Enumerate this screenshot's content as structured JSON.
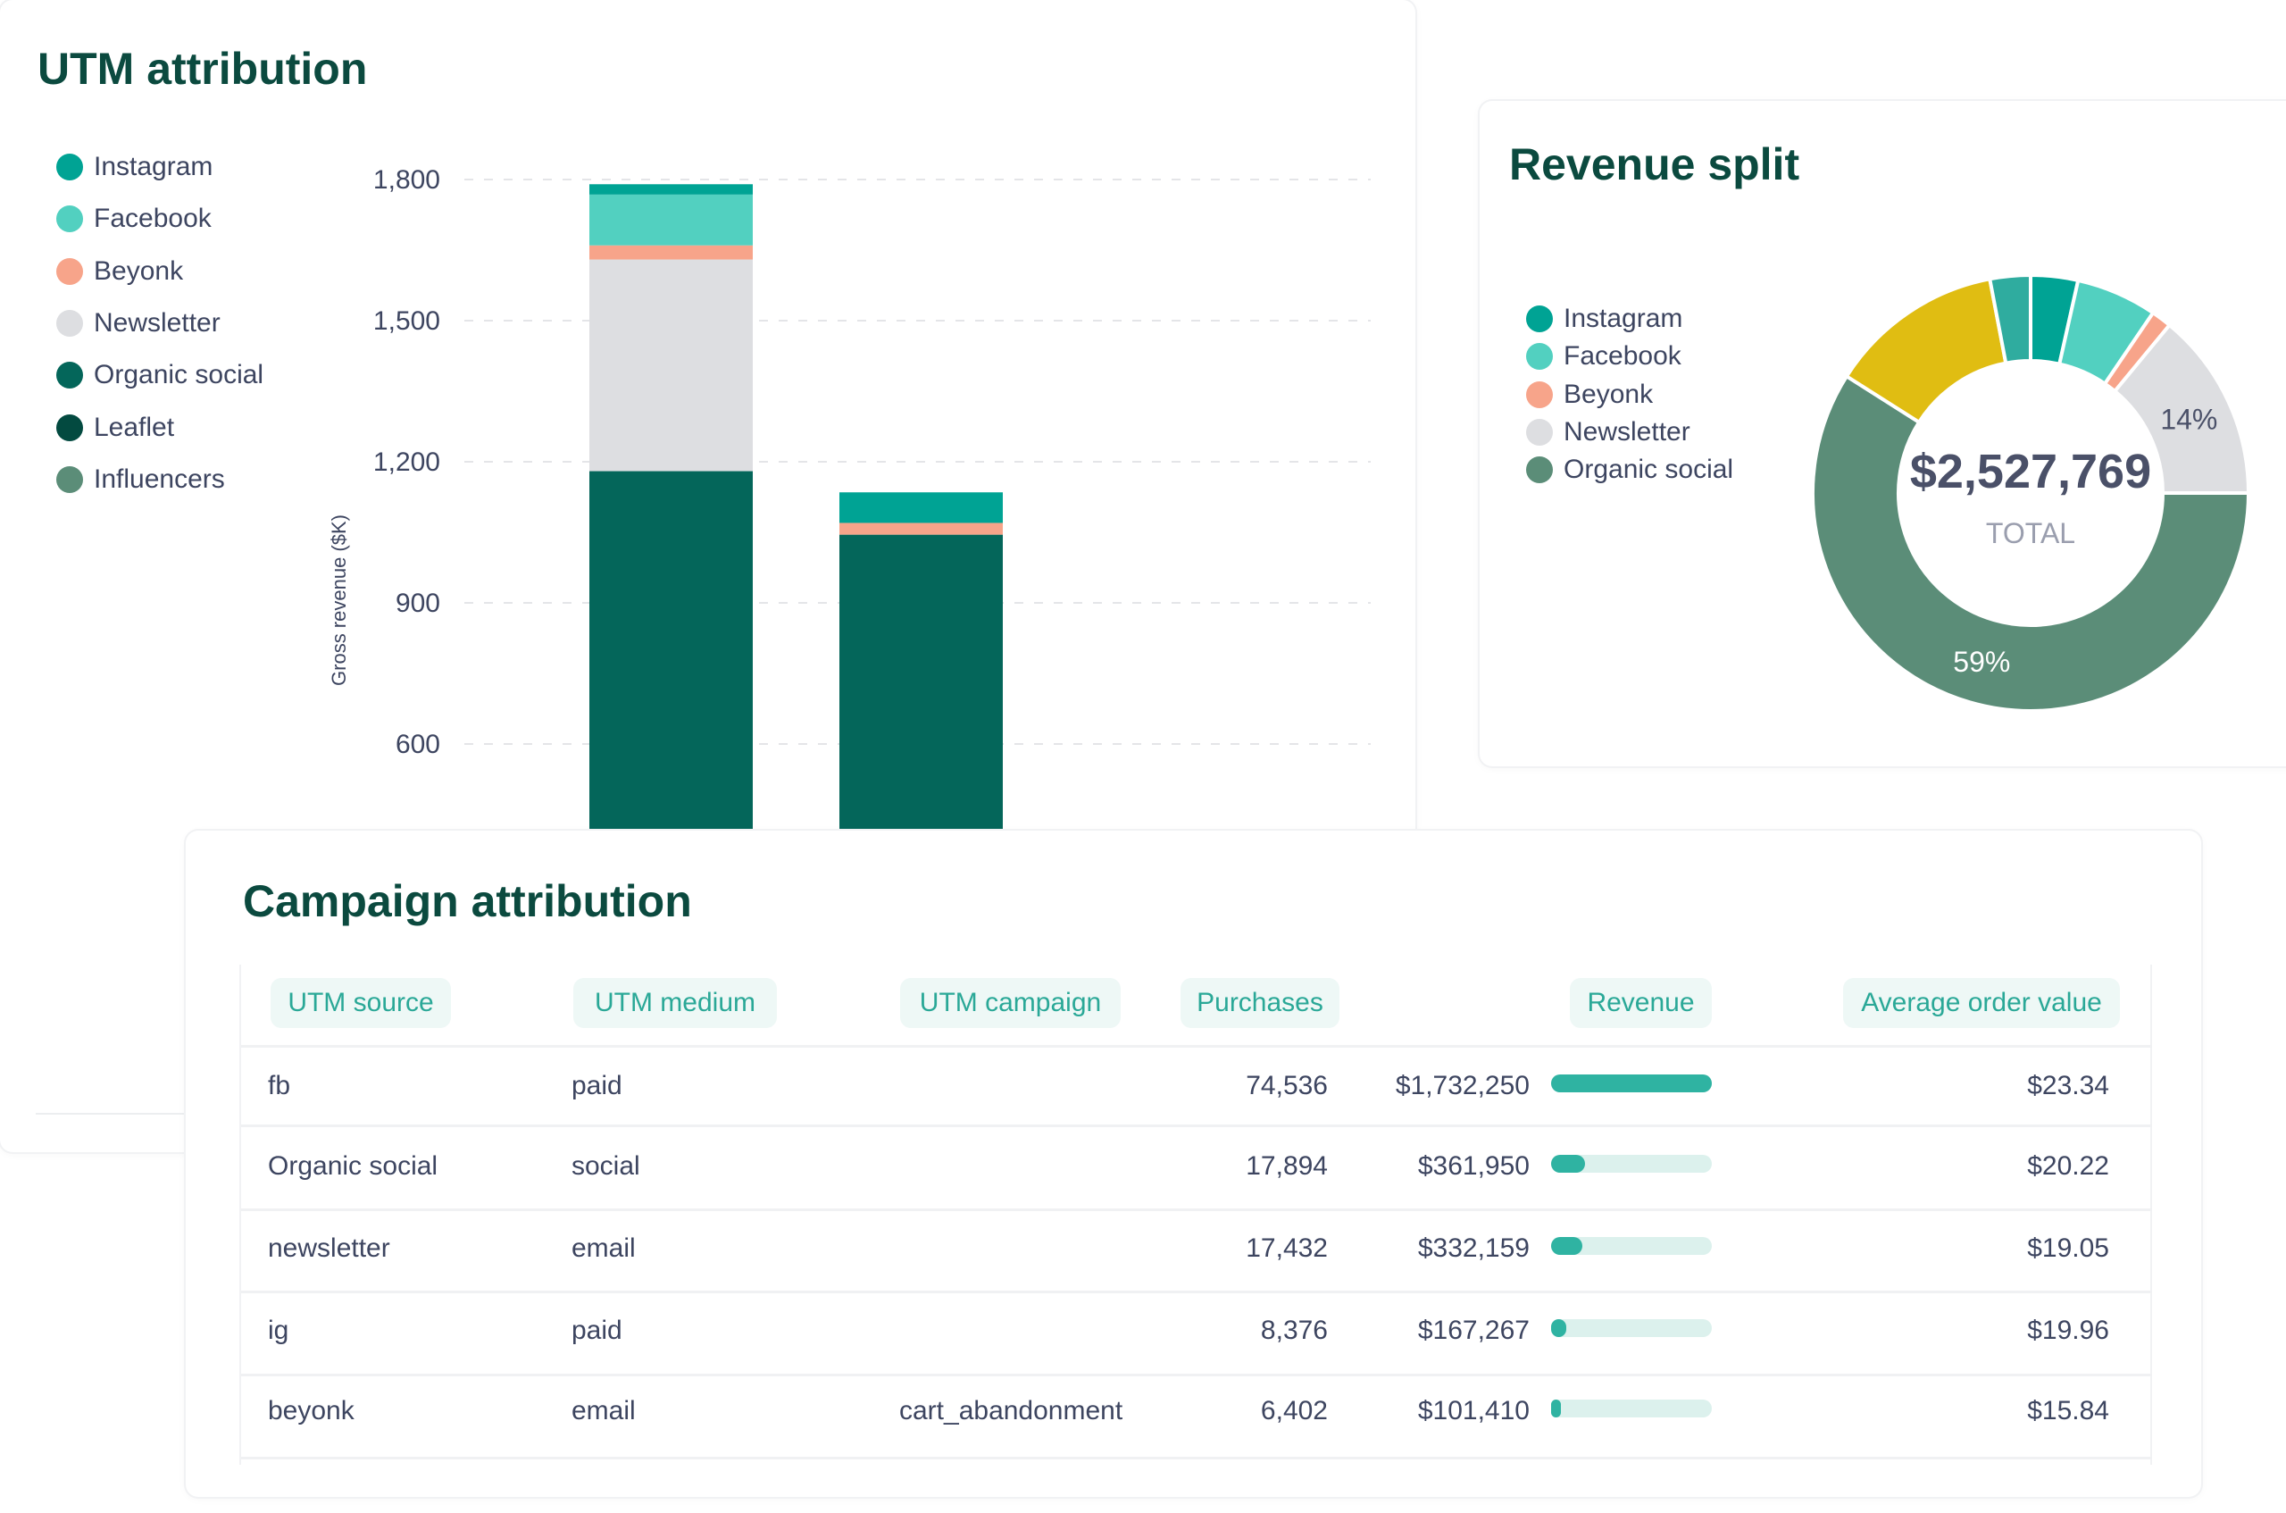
{
  "utm_card": {
    "title": "UTM attribution",
    "legend": [
      {
        "label": "Instagram",
        "color": "#00a394"
      },
      {
        "label": "Facebook",
        "color": "#52d0c0"
      },
      {
        "label": "Beyonk",
        "color": "#f7a48a"
      },
      {
        "label": "Newsletter",
        "color": "#dddee1"
      },
      {
        "label": "Organic social",
        "color": "#04665a"
      },
      {
        "label": "Leaflet",
        "color": "#034a40"
      },
      {
        "label": "Influencers",
        "color": "#5b8d78"
      }
    ]
  },
  "chart_data": [
    {
      "type": "bar",
      "stacked": true,
      "title": "UTM attribution",
      "ylabel": "Gross revenue ($K)",
      "yticks": [
        "1,800",
        "1,500",
        "1,200",
        "900",
        "600"
      ],
      "ytick_values": [
        1800,
        1500,
        1200,
        900,
        600
      ],
      "ylim": [
        0,
        1900
      ],
      "grid": true,
      "legend_placement": "left",
      "categories": [
        "",
        ""
      ],
      "series": [
        {
          "name": "Organic social",
          "color": "#04665a",
          "values": [
            1180,
            1045
          ]
        },
        {
          "name": "Newsletter",
          "color": "#dddee1",
          "values": [
            450,
            0
          ]
        },
        {
          "name": "Beyonk",
          "color": "#f7a48a",
          "values": [
            30,
            25
          ]
        },
        {
          "name": "Facebook",
          "color": "#52d0c0",
          "values": [
            108,
            0
          ]
        },
        {
          "name": "Instagram",
          "color": "#00a394",
          "values": [
            22,
            65
          ]
        }
      ]
    },
    {
      "type": "pie",
      "donut": true,
      "title": "Revenue split",
      "total_value": "$2,527,769",
      "total_label": "TOTAL",
      "legend_placement": "left",
      "slices": [
        {
          "name": "Instagram",
          "value": 3.5,
          "color": "#00a394"
        },
        {
          "name": "Facebook",
          "value": 6,
          "color": "#52d0c0"
        },
        {
          "name": "Beyonk",
          "value": 1.5,
          "color": "#f7a48a"
        },
        {
          "name": "Newsletter",
          "value": 14,
          "color": "#dddee1",
          "label": "14%"
        },
        {
          "name": "Organic social",
          "value": 59,
          "color": "#5b8d78",
          "label": "59%"
        },
        {
          "value": 13,
          "color": "#e0bd12"
        },
        {
          "value": 3,
          "color": "#2fac9f"
        }
      ]
    }
  ],
  "split_card": {
    "title": "Revenue split",
    "legend": [
      {
        "label": "Instagram",
        "color": "#00a394"
      },
      {
        "label": "Facebook",
        "color": "#52d0c0"
      },
      {
        "label": "Beyonk",
        "color": "#f7a48a"
      },
      {
        "label": "Newsletter",
        "color": "#dddee1"
      },
      {
        "label": "Organic social",
        "color": "#5b8d78"
      }
    ]
  },
  "campaign": {
    "title": "Campaign attribution",
    "columns": [
      "UTM source",
      "UTM medium",
      "UTM campaign",
      "Purchases",
      "Revenue",
      "Average order value"
    ],
    "rows": [
      {
        "source": "fb",
        "medium": "paid",
        "campaign": "",
        "purchases": "74,536",
        "revenue": "$1,732,250",
        "revenue_share": 1.0,
        "aov": "$23.34"
      },
      {
        "source": "Organic social",
        "medium": "social",
        "campaign": "",
        "purchases": "17,894",
        "revenue": "$361,950",
        "revenue_share": 0.209,
        "aov": "$20.22"
      },
      {
        "source": "newsletter",
        "medium": "email",
        "campaign": "",
        "purchases": "17,432",
        "revenue": "$332,159",
        "revenue_share": 0.192,
        "aov": "$19.05"
      },
      {
        "source": "ig",
        "medium": "paid",
        "campaign": "",
        "purchases": "8,376",
        "revenue": "$167,267",
        "revenue_share": 0.097,
        "aov": "$19.96"
      },
      {
        "source": "beyonk",
        "medium": "email",
        "campaign": "cart_abandonment",
        "purchases": "6,402",
        "revenue": "$101,410",
        "revenue_share": 0.059,
        "aov": "$15.84"
      }
    ]
  }
}
